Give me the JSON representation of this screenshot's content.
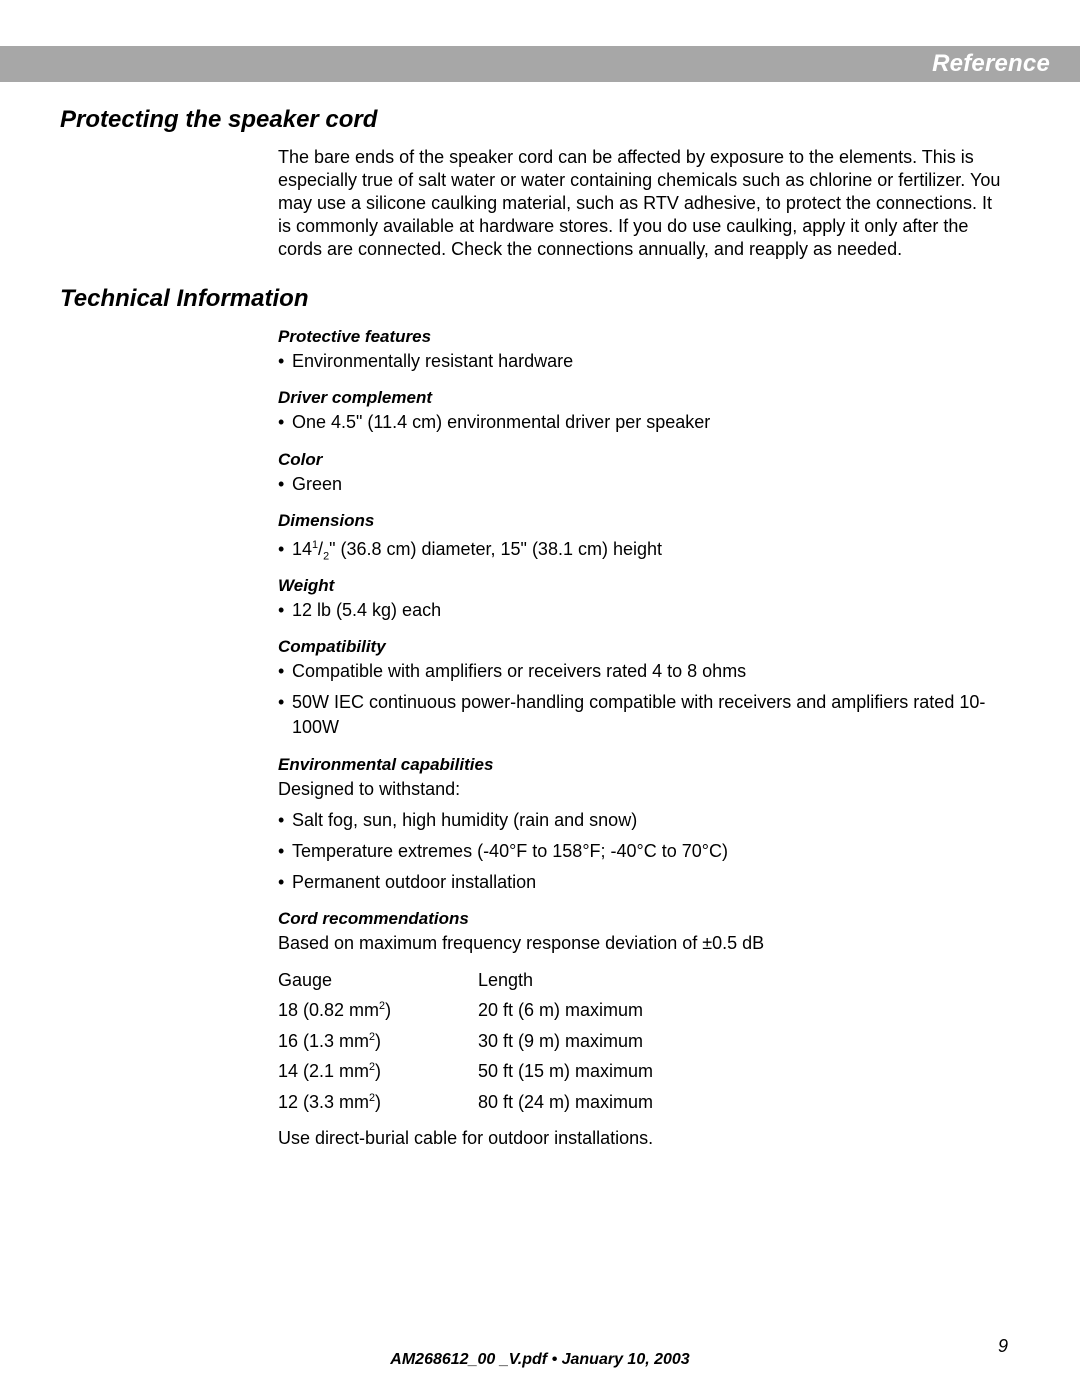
{
  "header": {
    "title": "Reference"
  },
  "section1": {
    "heading": "Protecting the speaker cord",
    "paragraph": "The bare ends of the speaker cord can be affected by exposure to the elements. This is especially true of salt water or water containing chemicals such as chlorine or fertilizer. You may use a silicone caulking material, such as RTV adhesive, to protect the connections. It is commonly available at hardware stores. If you do use caulking, apply it only after the cords are connected. Check the connections annually, and reapply as needed."
  },
  "section2": {
    "heading": "Technical Information",
    "subs": {
      "protective": {
        "title": "Protective features",
        "bullets": [
          "Environmentally resistant hardware"
        ]
      },
      "driver": {
        "title": "Driver complement",
        "bullets": [
          "One 4.5\" (11.4 cm) environmental driver per speaker"
        ]
      },
      "color": {
        "title": "Color",
        "bullets": [
          "Green"
        ]
      },
      "dimensions": {
        "title": "Dimensions",
        "bullets_html": [
          "14<span class=\"sup\">1</span>/<span class=\"sub\">2</span>\" (36.8 cm) diameter, 15\" (38.1 cm) height"
        ]
      },
      "weight": {
        "title": "Weight",
        "bullets": [
          "12 lb (5.4 kg) each"
        ]
      },
      "compatibility": {
        "title": "Compatibility",
        "bullets": [
          "Compatible with amplifiers or receivers rated 4 to 8 ohms",
          "50W IEC continuous power-handling compatible with receivers and amplifiers rated 10-100W"
        ]
      },
      "environmental": {
        "title": "Environmental capabilities",
        "lead": "Designed to withstand:",
        "bullets": [
          "Salt fog, sun, high humidity (rain and snow)",
          "Temperature extremes (-40°F to 158°F; -40°C to 70°C)",
          "Permanent outdoor installation"
        ]
      },
      "cord": {
        "title": "Cord recommendations",
        "lead": "Based on maximum frequency response deviation of ±0.5 dB",
        "table_headers": {
          "gauge": "Gauge",
          "length": "Length"
        },
        "rows": [
          {
            "gauge_html": "18 (0.82 mm<span class=\"sup\">2</span>)",
            "length": "20 ft (6 m) maximum"
          },
          {
            "gauge_html": "16 (1.3 mm<span class=\"sup\">2</span>)",
            "length": "30 ft (9 m) maximum"
          },
          {
            "gauge_html": "14 (2.1 mm<span class=\"sup\">2</span>)",
            "length": "50 ft (15 m) maximum"
          },
          {
            "gauge_html": "12 (3.3 mm<span class=\"sup\">2</span>)",
            "length": "80 ft (24 m) maximum"
          }
        ],
        "trailer": "Use direct-burial cable for outdoor installations."
      }
    }
  },
  "footer": {
    "text": "AM268612_00 _V.pdf • January 10, 2003",
    "page": "9"
  }
}
